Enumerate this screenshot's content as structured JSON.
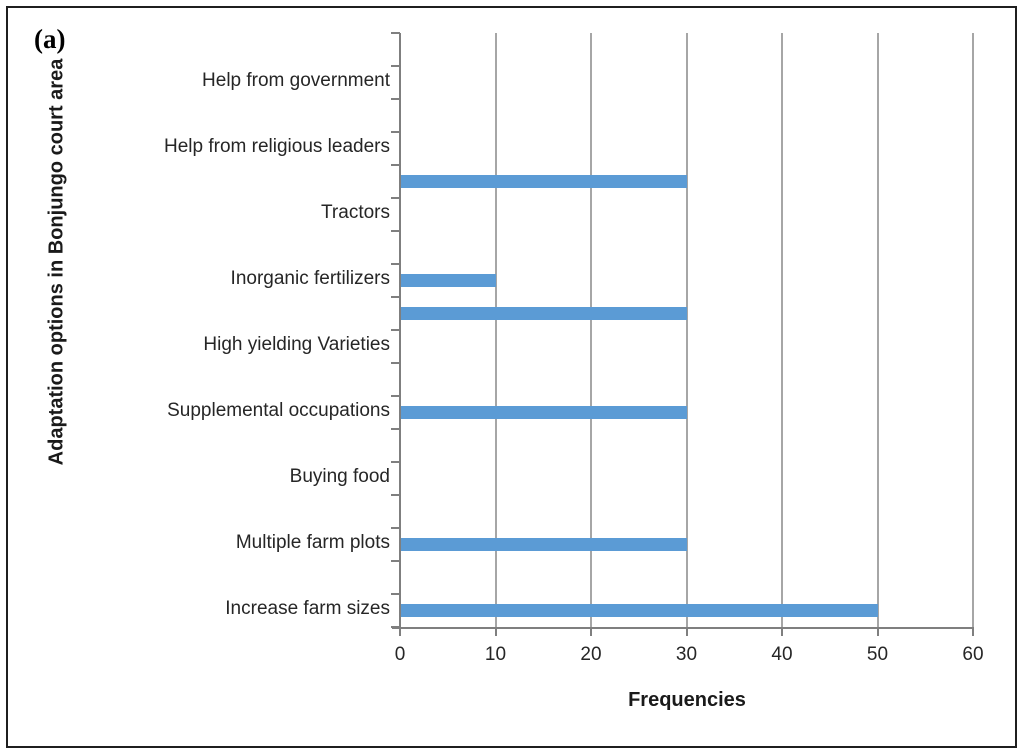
{
  "figure": {
    "panel_label": "(a)",
    "x_axis_title": "Frequencies",
    "y_axis_title": "Adaptation options in Bonjungo court area"
  },
  "chart_data": {
    "type": "bar",
    "orientation": "horizontal",
    "title": "",
    "xlabel": "Frequencies",
    "ylabel": "Adaptation options in Bonjungo court area",
    "xlim": [
      0,
      60
    ],
    "x_ticks": [
      0,
      10,
      20,
      30,
      40,
      50,
      60
    ],
    "grid": "vertical-gridlines-only",
    "legend": "none",
    "bar_color": "#5B9BD5",
    "gridline_color": "#A6A6A6",
    "axis_color": "#7F7F7F",
    "rows": [
      {
        "label": "",
        "value": 0
      },
      {
        "label": "Help from government",
        "value": 0
      },
      {
        "label": "",
        "value": 0
      },
      {
        "label": "Help from religious leaders",
        "value": 0
      },
      {
        "label": "",
        "value": 30
      },
      {
        "label": "Tractors",
        "value": 0
      },
      {
        "label": "",
        "value": 0
      },
      {
        "label": "Inorganic fertilizers",
        "value": 10
      },
      {
        "label": "",
        "value": 30
      },
      {
        "label": "High yielding Varieties",
        "value": 0
      },
      {
        "label": "",
        "value": 0
      },
      {
        "label": "Supplemental occupations",
        "value": 30
      },
      {
        "label": "",
        "value": 0
      },
      {
        "label": "Buying food",
        "value": 0
      },
      {
        "label": "",
        "value": 0
      },
      {
        "label": "Multiple farm plots",
        "value": 30
      },
      {
        "label": "",
        "value": 0
      },
      {
        "label": "Increase farm sizes",
        "value": 50
      }
    ]
  }
}
